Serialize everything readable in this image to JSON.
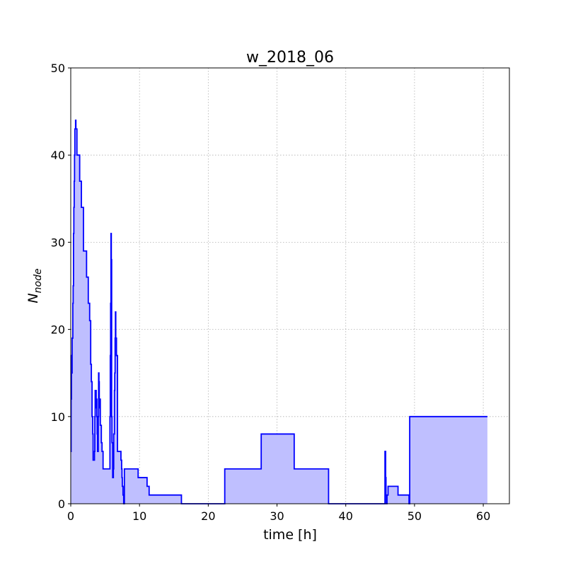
{
  "chart_data": {
    "type": "area",
    "title": "w_2018_06",
    "xlabel": "time [h]",
    "ylabel_main": "N",
    "ylabel_sub": "node",
    "xlim": [
      0,
      63.8
    ],
    "ylim": [
      0,
      50
    ],
    "xticks": [
      0,
      10,
      20,
      30,
      40,
      50,
      60
    ],
    "yticks": [
      0,
      10,
      20,
      30,
      40,
      50
    ],
    "grid": true,
    "step": "post",
    "line_color": "#0000ff",
    "fill_color": "#bfbfff",
    "series": [
      {
        "x": [
          0,
          0.05,
          0.1,
          0.15,
          0.2,
          0.3,
          0.35,
          0.4,
          0.45,
          0.5,
          0.55,
          0.6,
          0.65,
          0.7,
          0.75,
          0.8,
          0.85,
          0.9,
          1.2,
          1.3,
          1.5,
          1.55,
          1.8,
          1.85,
          2.2,
          2.3,
          2.5,
          2.55,
          2.65,
          2.75,
          2.8,
          2.9,
          3.0,
          3.1,
          3.2,
          3.25,
          3.35,
          3.45,
          3.5,
          3.55,
          3.6,
          3.7,
          3.75,
          3.8,
          3.85,
          3.9,
          4.0,
          4.05,
          4.1,
          4.15,
          4.2,
          4.3,
          4.35,
          4.45,
          4.55,
          4.7,
          5.6,
          5.7,
          5.75,
          5.8,
          5.85,
          5.9,
          5.95,
          6.0,
          6.1,
          6.2,
          6.25,
          6.35,
          6.4,
          6.45,
          6.5,
          6.55,
          6.6,
          6.65,
          6.7,
          6.8,
          6.85,
          6.9,
          7.0,
          7.3,
          7.4,
          7.45,
          7.5,
          7.6,
          7.7,
          7.8,
          8.0,
          9.8,
          11.1,
          11.4,
          16.1,
          22.4,
          27.7,
          32.5,
          37.5,
          45.7,
          45.8,
          45.85,
          45.9,
          46.0,
          46.15,
          47.6,
          49.2,
          49.3,
          60.6
        ],
        "y": [
          6,
          12,
          17,
          15,
          19,
          23,
          25,
          31,
          34,
          37,
          40,
          43,
          43,
          44,
          43,
          43,
          43,
          40,
          40,
          37,
          37,
          34,
          34,
          29,
          29,
          26,
          26,
          23,
          23,
          21,
          21,
          16,
          14,
          10,
          8,
          5,
          5,
          6,
          10,
          13,
          13,
          11,
          12,
          10,
          8,
          6,
          10,
          15,
          14,
          11,
          12,
          9,
          9,
          7,
          6,
          4,
          4,
          10,
          17,
          23,
          31,
          28,
          10,
          7,
          3,
          4,
          8,
          13,
          15,
          19,
          22,
          19,
          19,
          17,
          17,
          6,
          6,
          6,
          6,
          5,
          4,
          3,
          2,
          1,
          0,
          4,
          4,
          3,
          2,
          1,
          0,
          4,
          8,
          4,
          0,
          6,
          3,
          1,
          0,
          1,
          2,
          1,
          0,
          10,
          10
        ]
      }
    ]
  }
}
